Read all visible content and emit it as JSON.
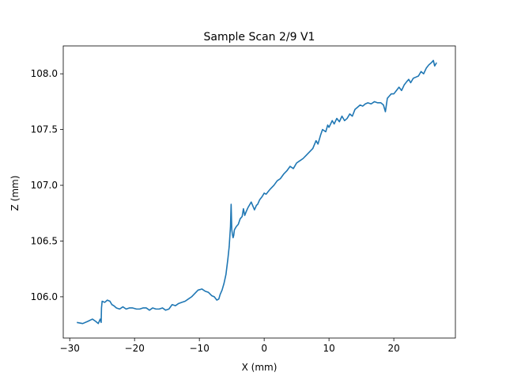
{
  "chart_data": {
    "type": "line",
    "title": "Sample Scan 2/9 V1",
    "xlabel": "X (mm)",
    "ylabel": "Z (mm)",
    "xlim": [
      -31.0,
      29.5
    ],
    "ylim": [
      105.63,
      108.25
    ],
    "xticks": [
      -30,
      -20,
      -10,
      0,
      10,
      20
    ],
    "xtick_labels": [
      "−30",
      "−20",
      "−10",
      "0",
      "10",
      "20"
    ],
    "yticks": [
      106.0,
      106.5,
      107.0,
      107.5,
      108.0
    ],
    "ytick_labels": [
      "106.0",
      "106.5",
      "107.0",
      "107.5",
      "108.0"
    ],
    "grid": false,
    "series": [
      {
        "color": "#1f77b4",
        "x": [
          -28.9,
          -28.0,
          -27.2,
          -26.5,
          -26.0,
          -25.6,
          -25.3,
          -25.15,
          -25.1,
          -25.0,
          -24.6,
          -24.2,
          -23.8,
          -23.5,
          -23.2,
          -22.8,
          -22.3,
          -21.8,
          -21.3,
          -20.8,
          -20.3,
          -19.7,
          -19.2,
          -18.7,
          -18.2,
          -17.7,
          -17.2,
          -16.7,
          -16.2,
          -15.7,
          -15.2,
          -14.7,
          -14.2,
          -13.7,
          -13.2,
          -12.7,
          -12.2,
          -11.7,
          -11.2,
          -10.7,
          -10.2,
          -9.6,
          -9.1,
          -8.6,
          -8.1,
          -7.7,
          -7.3,
          -7.0,
          -6.8,
          -6.5,
          -6.2,
          -5.9,
          -5.6,
          -5.4,
          -5.2,
          -5.1,
          -5.0,
          -4.9,
          -4.8,
          -4.7,
          -4.6,
          -4.3,
          -4.0,
          -3.7,
          -3.4,
          -3.2,
          -3.0,
          -2.8,
          -2.5,
          -2.0,
          -1.5,
          -1.2,
          -1.0,
          -0.7,
          -0.3,
          0.0,
          0.3,
          0.7,
          1.0,
          1.5,
          2.0,
          2.5,
          3.0,
          3.5,
          4.0,
          4.5,
          5.0,
          5.5,
          6.0,
          6.5,
          7.0,
          7.5,
          8.0,
          8.3,
          8.7,
          9.0,
          9.5,
          9.8,
          10.0,
          10.5,
          10.8,
          11.2,
          11.6,
          12.0,
          12.4,
          12.8,
          13.2,
          13.6,
          14.0,
          14.4,
          14.8,
          15.2,
          15.6,
          16.0,
          16.5,
          17.0,
          17.5,
          18.0,
          18.4,
          18.7,
          19.0,
          19.3,
          19.6,
          20.0,
          20.4,
          20.8,
          21.2,
          21.6,
          22.0,
          22.3,
          22.6,
          23.0,
          23.4,
          23.8,
          24.2,
          24.6,
          25.0,
          25.4,
          25.8,
          26.1,
          26.3,
          26.6
        ],
        "y": [
          105.77,
          105.76,
          105.78,
          105.8,
          105.78,
          105.76,
          105.8,
          105.77,
          105.9,
          105.96,
          105.95,
          105.97,
          105.96,
          105.93,
          105.92,
          105.9,
          105.89,
          105.91,
          105.89,
          105.9,
          105.9,
          105.89,
          105.89,
          105.9,
          105.9,
          105.88,
          105.9,
          105.89,
          105.89,
          105.9,
          105.88,
          105.89,
          105.93,
          105.92,
          105.94,
          105.95,
          105.96,
          105.98,
          106.0,
          106.03,
          106.06,
          106.07,
          106.05,
          106.04,
          106.01,
          106.0,
          105.97,
          105.98,
          106.02,
          106.06,
          106.12,
          106.2,
          106.34,
          106.45,
          106.63,
          106.83,
          106.6,
          106.56,
          106.53,
          106.55,
          106.6,
          106.63,
          106.65,
          106.7,
          106.72,
          106.79,
          106.73,
          106.76,
          106.8,
          106.85,
          106.78,
          106.82,
          106.83,
          106.87,
          106.9,
          106.93,
          106.92,
          106.95,
          106.97,
          107.0,
          107.04,
          107.06,
          107.1,
          107.13,
          107.17,
          107.15,
          107.2,
          107.22,
          107.24,
          107.27,
          107.3,
          107.33,
          107.4,
          107.37,
          107.45,
          107.5,
          107.48,
          107.54,
          107.52,
          107.58,
          107.55,
          107.6,
          107.57,
          107.62,
          107.58,
          107.6,
          107.64,
          107.62,
          107.68,
          107.7,
          107.72,
          107.71,
          107.73,
          107.74,
          107.73,
          107.75,
          107.74,
          107.74,
          107.72,
          107.66,
          107.78,
          107.8,
          107.82,
          107.82,
          107.85,
          107.88,
          107.85,
          107.9,
          107.93,
          107.95,
          107.92,
          107.96,
          107.97,
          107.98,
          108.02,
          108.0,
          108.05,
          108.08,
          108.1,
          108.12,
          108.07,
          108.1
        ]
      }
    ]
  }
}
